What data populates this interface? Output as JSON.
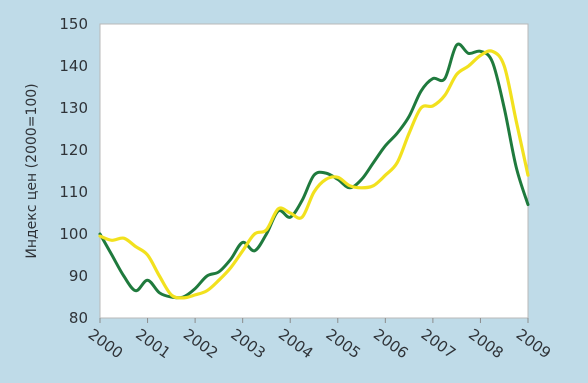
{
  "chart_data": {
    "type": "line",
    "title": "",
    "xlabel": "",
    "ylabel": "Индекс цен (2000=100)",
    "x_tick_labels": [
      "2000",
      "2001",
      "2002",
      "2003",
      "2004",
      "2005",
      "2006",
      "2007",
      "2008",
      "2009"
    ],
    "y_tick_labels": [
      "80",
      "90",
      "100",
      "110",
      "120",
      "130",
      "140",
      "150"
    ],
    "xlim": [
      2000,
      2009
    ],
    "ylim": [
      80,
      150
    ],
    "grid": false,
    "legend": "none",
    "series": [
      {
        "color": "#1f7a3d",
        "x": [
          2000.0,
          2000.25,
          2000.5,
          2000.75,
          2001.0,
          2001.25,
          2001.5,
          2001.75,
          2002.0,
          2002.25,
          2002.5,
          2002.75,
          2003.0,
          2003.25,
          2003.5,
          2003.75,
          2004.0,
          2004.25,
          2004.5,
          2004.75,
          2005.0,
          2005.25,
          2005.5,
          2005.75,
          2006.0,
          2006.25,
          2006.5,
          2006.75,
          2007.0,
          2007.25,
          2007.5,
          2007.75,
          2008.0,
          2008.25,
          2008.5,
          2008.75,
          2009.0
        ],
        "y": [
          100,
          95,
          90,
          86.5,
          89,
          86,
          85,
          85,
          87,
          90,
          91,
          94,
          98,
          96,
          100,
          105.5,
          104,
          108,
          114,
          114.5,
          113,
          111,
          113,
          117,
          121,
          124,
          128,
          134,
          137,
          137,
          145,
          143,
          143.5,
          141,
          130,
          116,
          107
        ]
      },
      {
        "color": "#f2e11e",
        "x": [
          2000.0,
          2000.25,
          2000.5,
          2000.75,
          2001.0,
          2001.25,
          2001.5,
          2001.75,
          2002.0,
          2002.25,
          2002.5,
          2002.75,
          2003.0,
          2003.25,
          2003.5,
          2003.75,
          2004.0,
          2004.25,
          2004.5,
          2004.75,
          2005.0,
          2005.25,
          2005.5,
          2005.75,
          2006.0,
          2006.25,
          2006.5,
          2006.75,
          2007.0,
          2007.25,
          2007.5,
          2007.75,
          2008.0,
          2008.25,
          2008.5,
          2008.75,
          2009.0
        ],
        "y": [
          99.5,
          98.5,
          99,
          97,
          95,
          90,
          85.5,
          84.8,
          85.5,
          86.5,
          89,
          92,
          96,
          100,
          101,
          106,
          105,
          104,
          110,
          113,
          113.5,
          111.5,
          111,
          111.5,
          114,
          117,
          124,
          130,
          130.5,
          133,
          138,
          140,
          142.5,
          143.5,
          140,
          127,
          114
        ]
      }
    ]
  }
}
